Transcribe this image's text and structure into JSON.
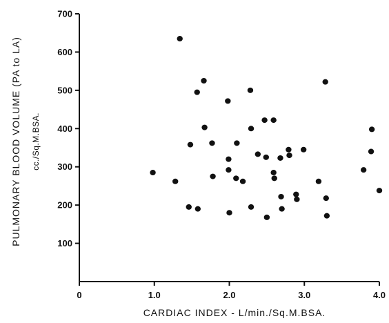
{
  "chart_data": {
    "type": "scatter",
    "title": "",
    "xlabel": "CARDIAC INDEX - L/min./Sq.M.BSA.",
    "ylabel": "PULMONARY BLOOD VOLUME (PA to LA)",
    "ylabel_sub": "cc./Sq.M.BSA.",
    "xlim": [
      0,
      4.0
    ],
    "ylim": [
      0,
      700
    ],
    "x_ticks": [
      "0",
      "1.0",
      "2.0",
      "3.0",
      "4.0"
    ],
    "y_ticks": [
      "100",
      "200",
      "300",
      "400",
      "500",
      "600",
      "700"
    ],
    "grid": false,
    "legend": "none",
    "series": [
      {
        "x": [
          0.98,
          1.28,
          1.34,
          1.46,
          1.48,
          1.57,
          1.58,
          1.66,
          1.67,
          1.77,
          1.78,
          1.98,
          1.99,
          1.99,
          2.0,
          2.09,
          2.1,
          2.18,
          2.28,
          2.29,
          2.29,
          2.38,
          2.47,
          2.49,
          2.5,
          2.59,
          2.59,
          2.6,
          2.68,
          2.69,
          2.7,
          2.79,
          2.8,
          2.89,
          2.9,
          2.99,
          3.19,
          3.28,
          3.29,
          3.3,
          3.79,
          3.89,
          3.9,
          4.0
        ],
        "y": [
          285,
          262,
          635,
          195,
          358,
          495,
          190,
          525,
          403,
          362,
          275,
          472,
          320,
          292,
          180,
          270,
          362,
          262,
          500,
          400,
          195,
          333,
          422,
          325,
          168,
          422,
          285,
          270,
          323,
          222,
          190,
          345,
          330,
          228,
          215,
          345,
          262,
          522,
          218,
          172,
          292,
          340,
          398,
          238
        ]
      }
    ]
  }
}
